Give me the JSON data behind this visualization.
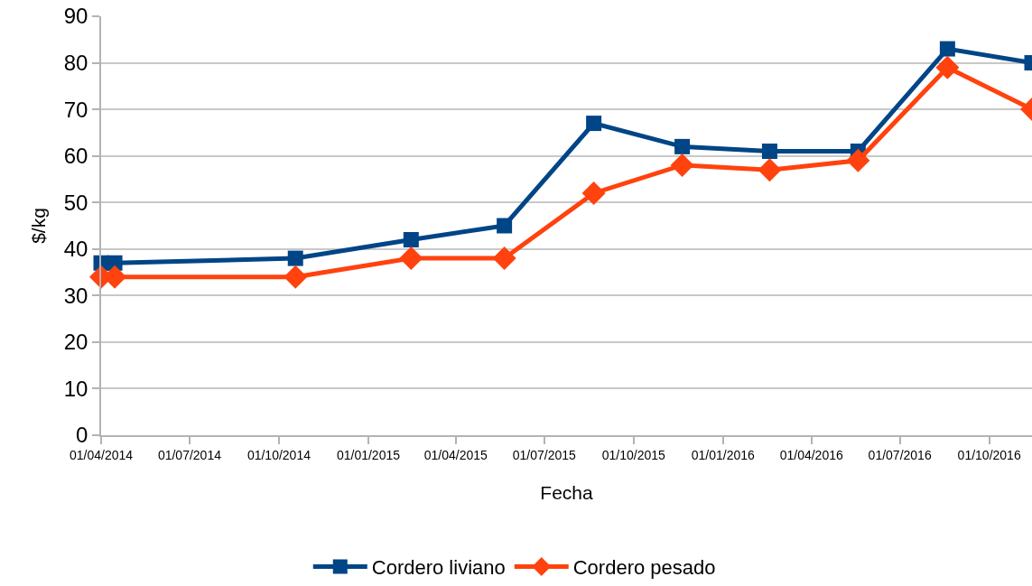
{
  "chart_data": {
    "type": "line",
    "xlabel": "Fecha",
    "ylabel": "$/kg",
    "x": [
      "2014-04-01",
      "2014-04-15",
      "2014-10-18",
      "2015-02-14",
      "2015-05-21",
      "2015-08-21",
      "2015-11-20",
      "2016-02-18",
      "2016-05-19",
      "2016-08-19",
      "2016-11-14"
    ],
    "series": [
      {
        "name": "Cordero liviano",
        "color": "#004586",
        "marker": "square",
        "values": [
          37,
          37,
          38,
          42,
          45,
          67,
          62,
          61,
          61,
          83,
          80
        ]
      },
      {
        "name": "Cordero pesado",
        "color": "#ff420e",
        "marker": "diamond",
        "values": [
          34,
          34,
          34,
          38,
          38,
          52,
          58,
          57,
          59,
          79,
          70
        ]
      }
    ],
    "xlim": [
      "2014-04-01",
      "2016-11-14"
    ],
    "xticks": [
      {
        "value": "2014-04-01",
        "label": "01/04/2014"
      },
      {
        "value": "2014-07-01",
        "label": "01/07/2014"
      },
      {
        "value": "2014-10-01",
        "label": "01/10/2014"
      },
      {
        "value": "2015-01-01",
        "label": "01/01/2015"
      },
      {
        "value": "2015-04-01",
        "label": "01/04/2015"
      },
      {
        "value": "2015-07-01",
        "label": "01/07/2015"
      },
      {
        "value": "2015-10-01",
        "label": "01/10/2015"
      },
      {
        "value": "2016-01-01",
        "label": "01/01/2016"
      },
      {
        "value": "2016-04-01",
        "label": "01/04/2016"
      },
      {
        "value": "2016-07-01",
        "label": "01/07/2016"
      },
      {
        "value": "2016-10-01",
        "label": "01/10/2016"
      }
    ],
    "ylim": [
      0,
      90
    ],
    "yticks": [
      0,
      10,
      20,
      30,
      40,
      50,
      60,
      70,
      80,
      90
    ],
    "grid": "y",
    "legend": "bottom"
  }
}
